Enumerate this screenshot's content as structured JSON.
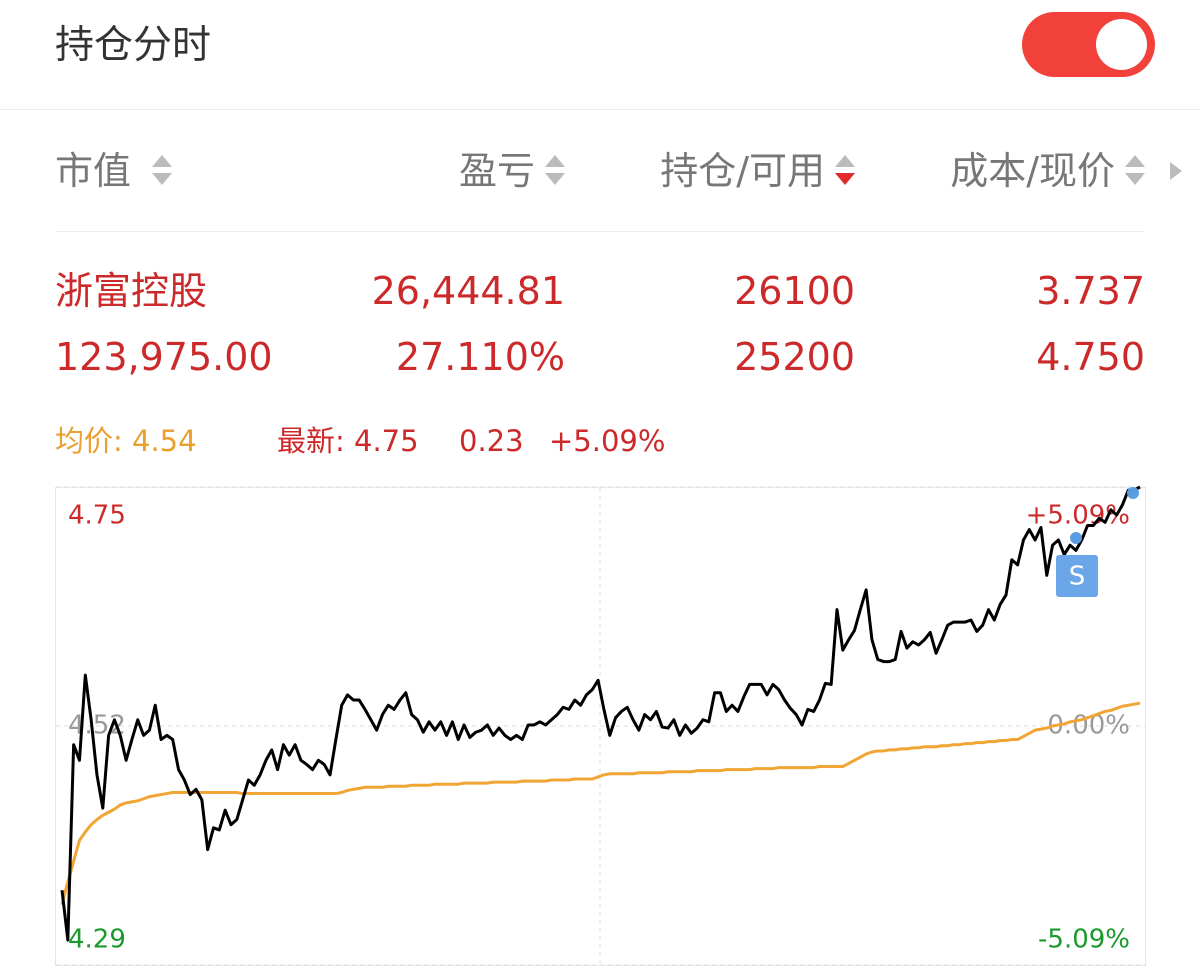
{
  "header": {
    "title": "持仓分时",
    "toggle": true
  },
  "table": {
    "headers": [
      "市值",
      "盈亏",
      "持仓/可用",
      "成本/现价"
    ],
    "sort": {
      "column": 2,
      "order": "desc"
    },
    "rows": [
      [
        "浙富控股",
        "26,444.81",
        "26100",
        "3.737"
      ],
      [
        "123,975.00",
        "27.110%",
        "25200",
        "4.750"
      ]
    ]
  },
  "quote": {
    "average": "均价: 4.54",
    "latest": "最新: 4.75",
    "change": "0.23",
    "change_pct": "+5.09%"
  },
  "chart_data": {
    "type": "line",
    "ylim": [
      4.29,
      4.75
    ],
    "yticks": [
      4.75,
      4.52,
      4.29
    ],
    "y2lim": [
      -5.09,
      5.09
    ],
    "y2ticks": [
      {
        "value": 5.09,
        "label": "+5.09%"
      },
      {
        "value": 0,
        "label": "0.00%"
      },
      {
        "value": -5.09,
        "label": "-5.09%"
      }
    ],
    "grid": true,
    "annotations": [
      "S"
    ],
    "series": [
      {
        "name": "最新",
        "color": "#000000",
        "values": [
          4.362,
          4.314,
          4.502,
          4.487,
          4.569,
          4.526,
          4.473,
          4.441,
          4.511,
          4.526,
          4.511,
          4.487,
          4.507,
          4.526,
          4.511,
          4.516,
          4.54,
          4.507,
          4.511,
          4.507,
          4.478,
          4.468,
          4.454,
          4.459,
          4.449,
          4.401,
          4.422,
          4.42,
          4.439,
          4.425,
          4.43,
          4.449,
          4.468,
          4.463,
          4.473,
          4.487,
          4.497,
          4.478,
          4.502,
          4.492,
          4.502,
          4.487,
          4.483,
          4.478,
          4.487,
          4.483,
          4.473,
          4.507,
          4.54,
          4.55,
          4.545,
          4.545,
          4.536,
          4.526,
          4.516,
          4.531,
          4.54,
          4.536,
          4.545,
          4.552,
          4.531,
          4.526,
          4.514,
          4.524,
          4.516,
          4.524,
          4.511,
          4.524,
          4.507,
          4.521,
          4.509,
          4.514,
          4.516,
          4.521,
          4.511,
          4.518,
          4.511,
          4.507,
          4.511,
          4.507,
          4.521,
          4.521,
          4.524,
          4.521,
          4.526,
          4.531,
          4.538,
          4.536,
          4.545,
          4.54,
          4.55,
          4.555,
          4.564,
          4.536,
          4.511,
          4.528,
          4.534,
          4.538,
          4.526,
          4.516,
          4.531,
          4.526,
          4.534,
          4.519,
          4.518,
          4.526,
          4.511,
          4.521,
          4.513,
          4.518,
          4.526,
          4.524,
          4.552,
          4.552,
          4.534,
          4.54,
          4.534,
          4.548,
          4.56,
          4.56,
          4.56,
          4.55,
          4.56,
          4.555,
          4.545,
          4.537,
          4.531,
          4.521,
          4.536,
          4.534,
          4.545,
          4.561,
          4.56,
          4.632,
          4.593,
          4.603,
          4.612,
          4.632,
          4.651,
          4.603,
          4.584,
          4.582,
          4.582,
          4.584,
          4.611,
          4.595,
          4.601,
          4.598,
          4.603,
          4.61,
          4.59,
          4.603,
          4.617,
          4.62,
          4.62,
          4.62,
          4.622,
          4.611,
          4.617,
          4.632,
          4.622,
          4.637,
          4.646,
          4.68,
          4.675,
          4.699,
          4.709,
          4.699,
          4.711,
          4.665,
          4.694,
          4.699,
          4.685,
          4.694,
          4.689,
          4.699,
          4.713,
          4.713,
          4.72,
          4.716,
          4.728,
          4.723,
          4.733,
          4.747,
          4.747,
          4.75
        ]
      },
      {
        "name": "均价",
        "color": "#f0a534",
        "values": [
          4.348,
          4.37,
          4.39,
          4.41,
          4.418,
          4.425,
          4.43,
          4.434,
          4.437,
          4.44,
          4.444,
          4.446,
          4.447,
          4.448,
          4.45,
          4.452,
          4.453,
          4.454,
          4.455,
          4.456,
          4.456,
          4.456,
          4.456,
          4.456,
          4.456,
          4.456,
          4.456,
          4.456,
          4.456,
          4.456,
          4.456,
          4.455,
          4.455,
          4.455,
          4.455,
          4.455,
          4.455,
          4.455,
          4.455,
          4.455,
          4.455,
          4.455,
          4.455,
          4.455,
          4.455,
          4.455,
          4.455,
          4.455,
          4.456,
          4.458,
          4.459,
          4.46,
          4.461,
          4.461,
          4.461,
          4.461,
          4.462,
          4.462,
          4.462,
          4.462,
          4.463,
          4.463,
          4.463,
          4.463,
          4.464,
          4.464,
          4.464,
          4.464,
          4.464,
          4.465,
          4.465,
          4.465,
          4.465,
          4.465,
          4.466,
          4.466,
          4.466,
          4.466,
          4.466,
          4.467,
          4.467,
          4.467,
          4.467,
          4.467,
          4.468,
          4.468,
          4.468,
          4.468,
          4.469,
          4.469,
          4.469,
          4.469,
          4.471,
          4.473,
          4.474,
          4.474,
          4.474,
          4.474,
          4.474,
          4.475,
          4.475,
          4.475,
          4.475,
          4.475,
          4.476,
          4.476,
          4.476,
          4.476,
          4.476,
          4.477,
          4.477,
          4.477,
          4.477,
          4.477,
          4.478,
          4.478,
          4.478,
          4.478,
          4.478,
          4.479,
          4.479,
          4.479,
          4.479,
          4.48,
          4.48,
          4.48,
          4.48,
          4.48,
          4.48,
          4.48,
          4.481,
          4.481,
          4.481,
          4.481,
          4.481,
          4.484,
          4.487,
          4.49,
          4.493,
          4.495,
          4.496,
          4.496,
          4.497,
          4.497,
          4.498,
          4.498,
          4.499,
          4.499,
          4.5,
          4.5,
          4.5,
          4.501,
          4.501,
          4.502,
          4.502,
          4.503,
          4.503,
          4.504,
          4.504,
          4.505,
          4.505,
          4.506,
          4.506,
          4.507,
          4.507,
          4.51,
          4.513,
          4.516,
          4.517,
          4.518,
          4.52,
          4.521,
          4.522,
          4.524,
          4.525,
          4.526,
          4.528,
          4.53,
          4.532,
          4.534,
          4.535,
          4.537,
          4.539,
          4.54,
          4.541,
          4.542
        ]
      }
    ]
  }
}
